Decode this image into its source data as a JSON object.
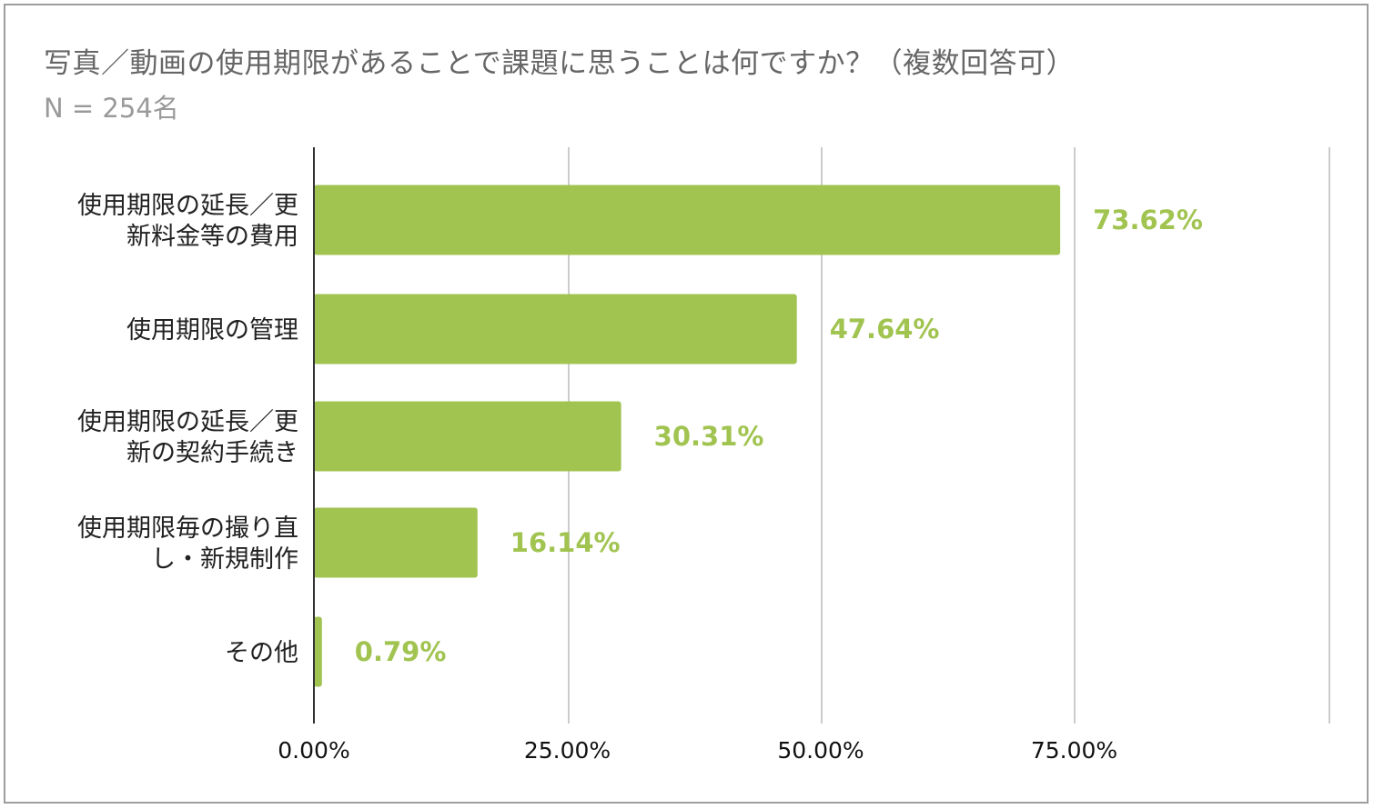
{
  "chart_data": {
    "type": "bar",
    "orientation": "horizontal",
    "title": "写真／動画の使用期限があることで課題に思うことは何ですか？（複数回答可）",
    "subtitle": "N = 254名",
    "categories": [
      [
        "使用期限の延長／更",
        "新料金等の費用"
      ],
      [
        "使用期限の管理"
      ],
      [
        "使用期限の延長／更",
        "新の契約手続き"
      ],
      [
        "使用期限毎の撮り直",
        "し・新規制作"
      ],
      [
        "その他"
      ]
    ],
    "values": [
      73.62,
      47.64,
      30.31,
      16.14,
      0.79
    ],
    "value_labels": [
      "73.62%",
      "47.64%",
      "30.31%",
      "16.14%",
      "0.79%"
    ],
    "xlim": [
      0,
      100
    ],
    "x_ticks": [
      0,
      25,
      50,
      75
    ],
    "x_tick_labels": [
      "0.00%",
      "25.00%",
      "50.00%",
      "75.00%"
    ],
    "grid": true,
    "legend": "none",
    "colors": {
      "bar": "#a1c451",
      "value_label": "#a1c451",
      "grid": "#cccccc",
      "axis": "#333333"
    }
  }
}
